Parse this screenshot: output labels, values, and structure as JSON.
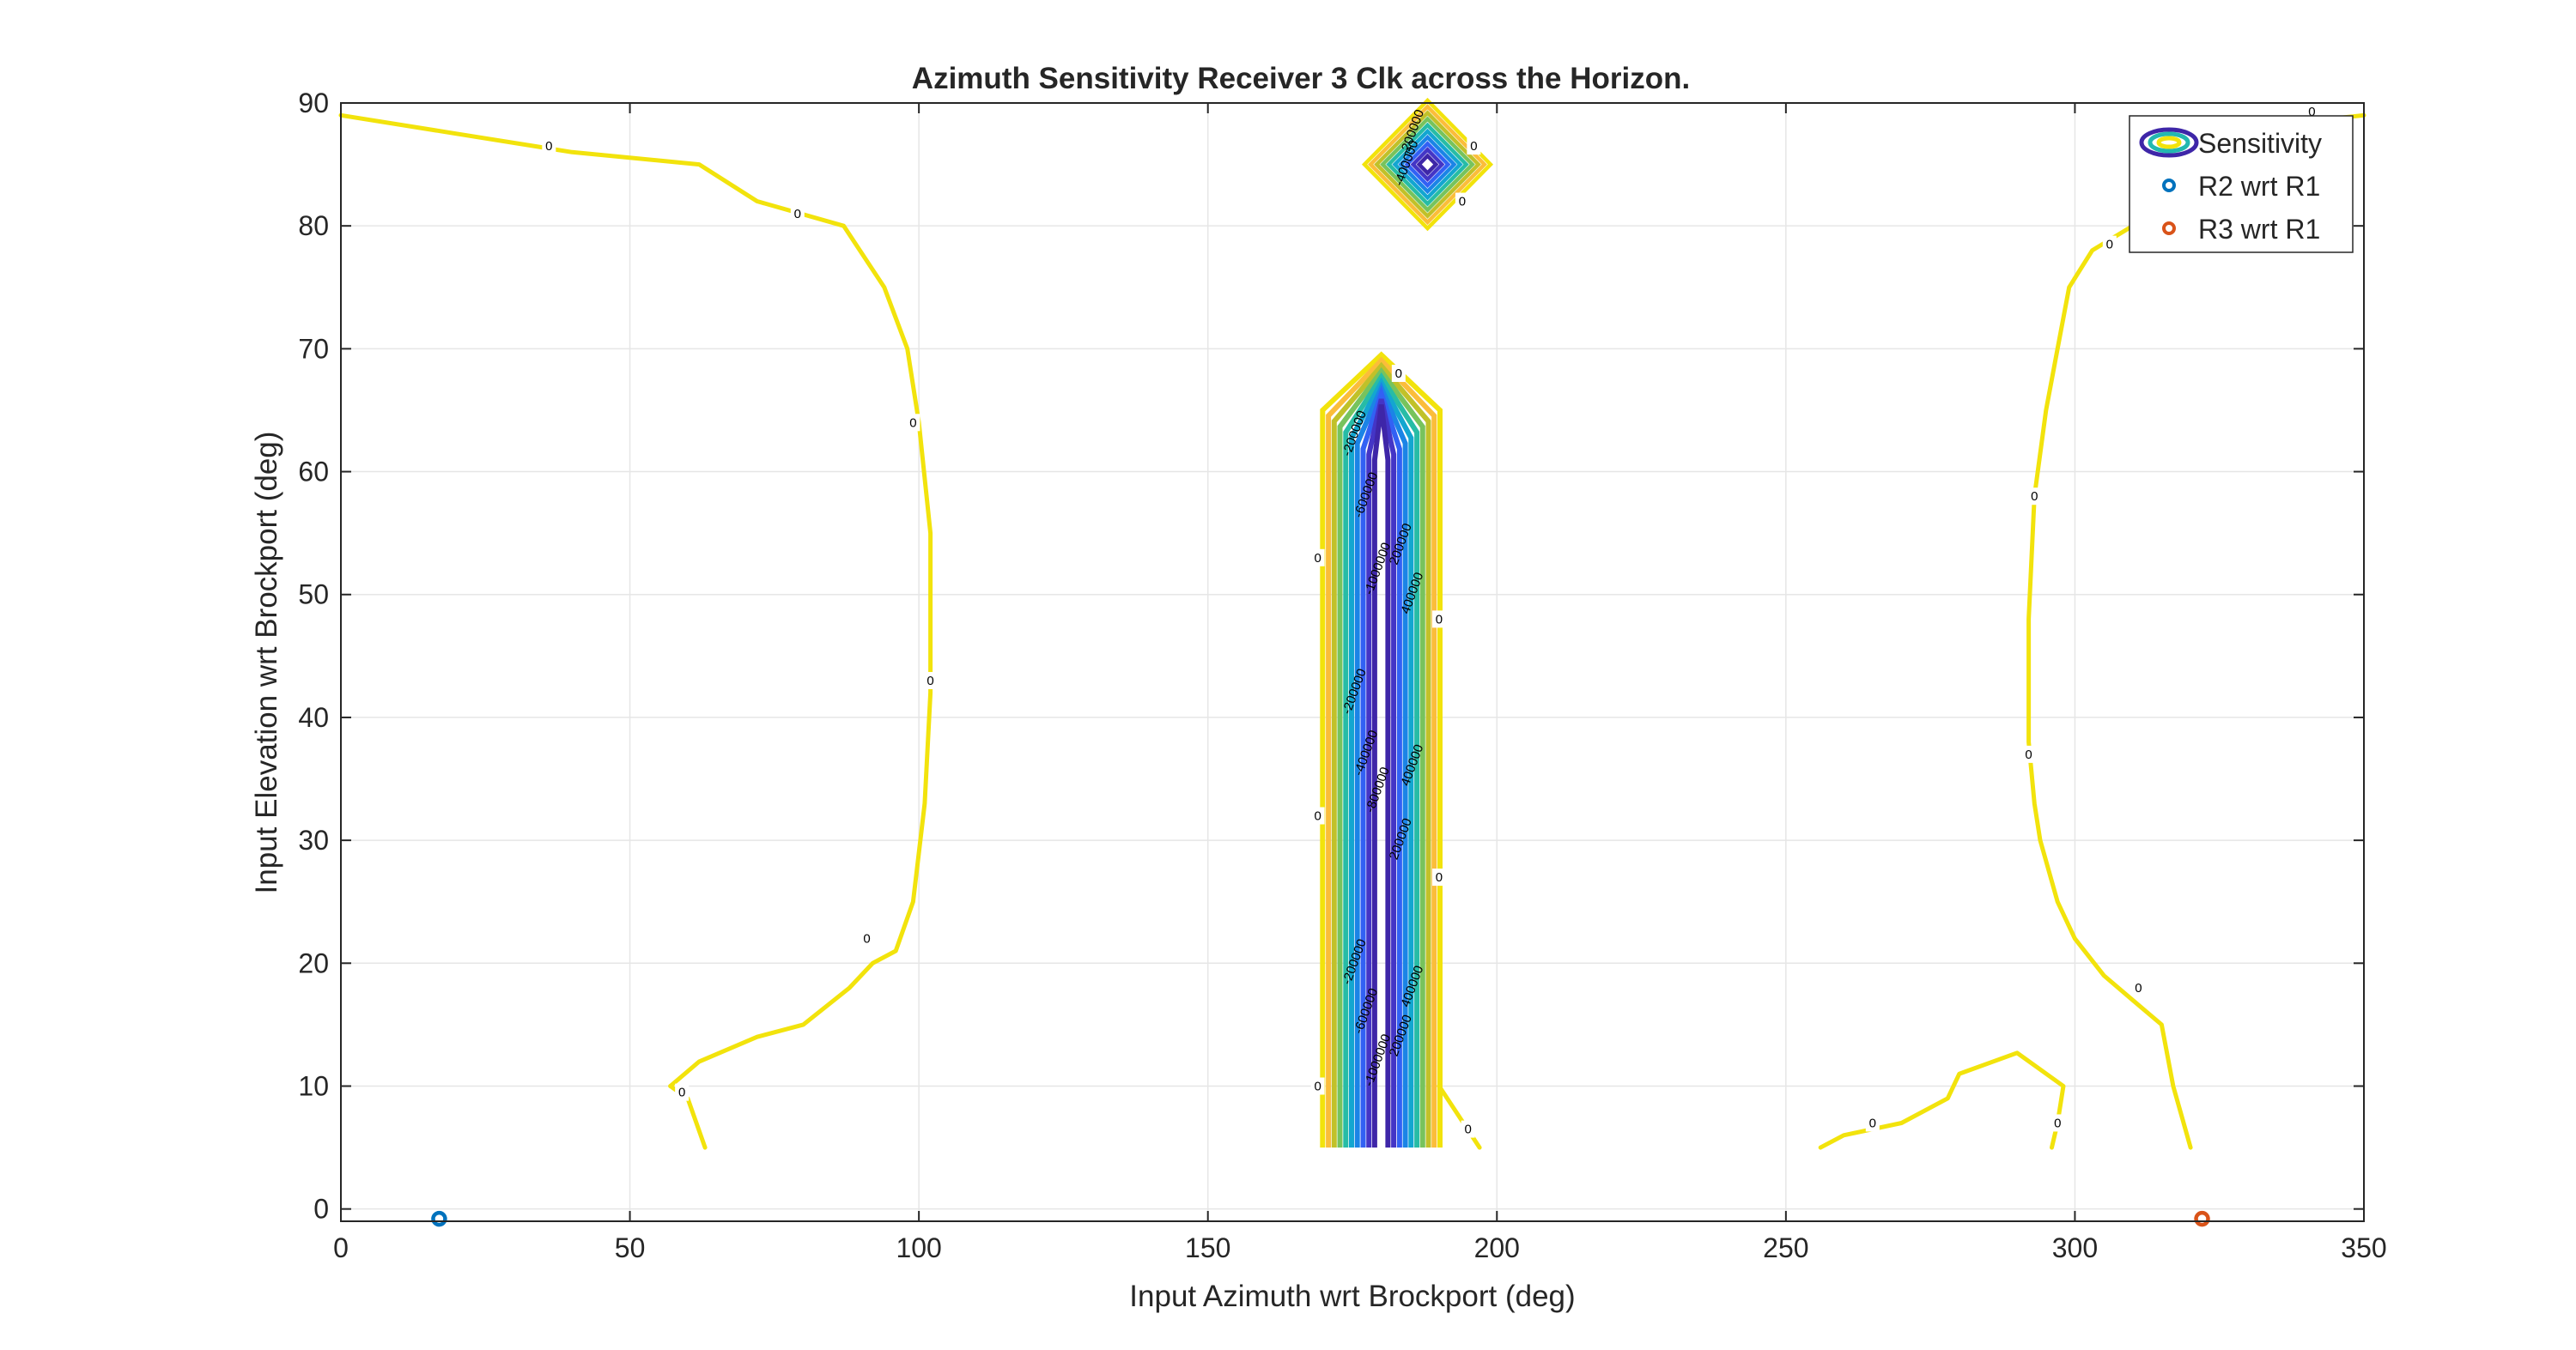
{
  "chart_data": {
    "type": "contour",
    "title": "Azimuth Sensitivity Receiver 3 Clk across the Horizon.",
    "xlabel": "Input Azimuth wrt Brockport (deg)",
    "ylabel": "Input Elevation wrt Brockport (deg)",
    "xlim": [
      0,
      350
    ],
    "ylim": [
      -1,
      90
    ],
    "x_ticks": [
      0,
      50,
      100,
      150,
      200,
      250,
      300,
      350
    ],
    "y_ticks": [
      0,
      10,
      20,
      30,
      40,
      50,
      60,
      70,
      80,
      90
    ],
    "grid": true,
    "legend_position": "top-right",
    "legend": [
      {
        "name": "Sensitivity",
        "kind": "contour",
        "color": "#f2e30c"
      },
      {
        "name": "R2 wrt R1",
        "kind": "marker",
        "color": "#0072bd"
      },
      {
        "name": "R3 wrt R1",
        "kind": "marker",
        "color": "#d95319"
      }
    ],
    "markers": [
      {
        "series": "R2 wrt R1",
        "x": 17,
        "y": -0.8
      },
      {
        "series": "R3 wrt R1",
        "x": 322,
        "y": -0.8
      }
    ],
    "contour_levels": [
      "0",
      "-200000",
      "-400000",
      "-600000",
      "-800000",
      "-1000000",
      "200000",
      "400000"
    ],
    "zero_contours": [
      {
        "x": [
          0,
          20,
          40,
          62,
          72,
          87,
          94,
          98,
          100,
          102,
          102,
          101,
          99,
          96,
          92,
          88,
          80,
          72,
          62,
          57
        ],
        "y": [
          89,
          87.5,
          86,
          85,
          82,
          80,
          75,
          70,
          64,
          55,
          42,
          33,
          25,
          21,
          20,
          18,
          15,
          14,
          12,
          10
        ]
      },
      {
        "x": [
          57,
          60,
          63
        ],
        "y": [
          10,
          9,
          5
        ]
      },
      {
        "x": [
          310,
          303,
          299,
          297,
          295,
          293,
          292,
          292,
          293,
          294,
          297,
          300,
          305,
          310,
          315,
          317,
          320
        ],
        "y": [
          80,
          78,
          75,
          70,
          65,
          58,
          48,
          38,
          33,
          30,
          25,
          22,
          19,
          17,
          15,
          10,
          5
        ]
      },
      {
        "x": [
          256,
          260,
          270,
          278,
          280,
          290,
          298,
          297,
          296
        ],
        "y": [
          5,
          6,
          7,
          9,
          11,
          12.7,
          10,
          7,
          5
        ]
      },
      {
        "x": [
          320,
          335,
          340,
          350
        ],
        "y": [
          82,
          86,
          88.5,
          89
        ]
      },
      {
        "x": [
          190,
          197
        ],
        "y": [
          10,
          5
        ]
      }
    ],
    "zero_labels": [
      {
        "x": 36,
        "y": 86.5
      },
      {
        "x": 79,
        "y": 81
      },
      {
        "x": 99,
        "y": 64
      },
      {
        "x": 102,
        "y": 43
      },
      {
        "x": 91,
        "y": 22
      },
      {
        "x": 59,
        "y": 9.5
      },
      {
        "x": 293,
        "y": 58
      },
      {
        "x": 292,
        "y": 37
      },
      {
        "x": 306,
        "y": 78.5
      },
      {
        "x": 311,
        "y": 18
      },
      {
        "x": 265,
        "y": 7
      },
      {
        "x": 297,
        "y": 7
      },
      {
        "x": 195,
        "y": 6.5
      },
      {
        "x": 169,
        "y": 53
      },
      {
        "x": 169,
        "y": 32
      },
      {
        "x": 169,
        "y": 10
      },
      {
        "x": 190,
        "y": 48
      },
      {
        "x": 190,
        "y": 27
      },
      {
        "x": 183,
        "y": 68
      },
      {
        "x": 196,
        "y": 86.5
      },
      {
        "x": 194,
        "y": 82
      },
      {
        "x": 341,
        "y": 89.3
      }
    ]
  }
}
